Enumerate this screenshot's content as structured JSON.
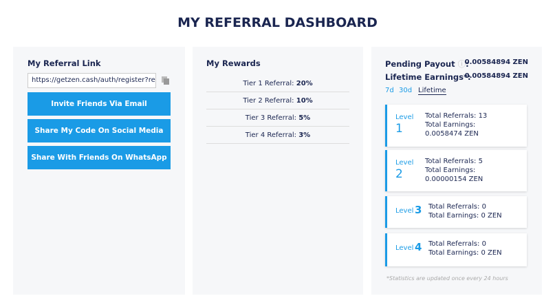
{
  "header": {
    "title": "MY REFERRAL DASHBOARD"
  },
  "referral": {
    "title": "My Referral Link",
    "url": "https://getzen.cash/auth/register?ref=",
    "buttons": [
      "Invite Friends Via Email",
      "Share My Code On Social Media",
      "Share With Friends On WhatsApp"
    ]
  },
  "rewards": {
    "title": "My Rewards",
    "tiers": [
      {
        "label": "Tier 1 Referral:",
        "value": "20%"
      },
      {
        "label": "Tier 2 Referral:",
        "value": "10%"
      },
      {
        "label": "Tier 3 Referral:",
        "value": "5%"
      },
      {
        "label": "Tier 4 Referral:",
        "value": "3%"
      }
    ]
  },
  "stats": {
    "pending_label": "Pending Payout",
    "pending_colon": ":",
    "pending_value": "0.00584894 ZEN",
    "lifetime_label": "Lifetime Earnings*:",
    "lifetime_value": "0.00584894 ZEN",
    "tabs": [
      "7d",
      "30d",
      "Lifetime"
    ],
    "levels": [
      {
        "label": "Level",
        "number": "1",
        "referrals": "Total Referrals: 13",
        "earnings": "Total Earnings: 0.0058474 ZEN"
      },
      {
        "label": "Level",
        "number": "2",
        "referrals": "Total Referrals: 5",
        "earnings": "Total Earnings: 0.00000154 ZEN"
      },
      {
        "label": "Level",
        "number": "3",
        "referrals": "Total Referrals: 0",
        "earnings": "Total Earnings: 0 ZEN"
      },
      {
        "label": "Level",
        "number": "4",
        "referrals": "Total Referrals: 0",
        "earnings": "Total Earnings: 0 ZEN"
      }
    ],
    "footnote": "*Statistics are updated once every 24 hours"
  }
}
